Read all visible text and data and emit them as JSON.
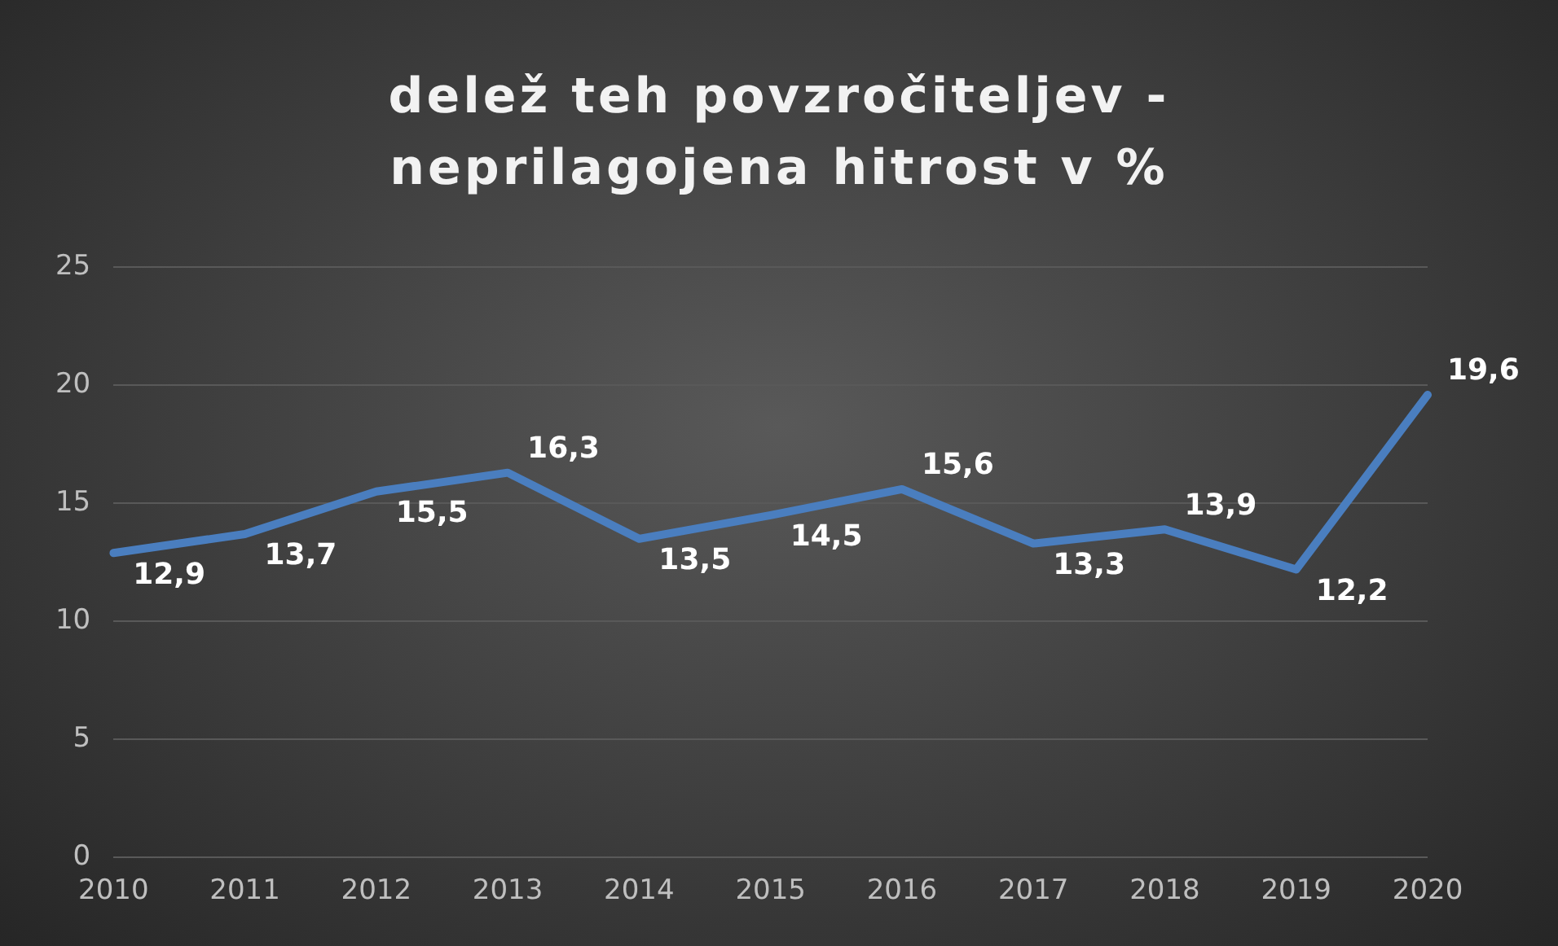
{
  "chart_data": {
    "type": "line",
    "title": "delež teh povzročiteljev - neprilagojena hitrost v %",
    "categories": [
      "2010",
      "2011",
      "2012",
      "2013",
      "2014",
      "2015",
      "2016",
      "2017",
      "2018",
      "2019",
      "2020"
    ],
    "series": [
      {
        "color": "#4a7ebf",
        "values": [
          12.9,
          13.7,
          15.5,
          16.3,
          13.5,
          14.5,
          15.6,
          13.3,
          13.9,
          12.2,
          19.6
        ],
        "value_labels": [
          "12,9",
          "13,7",
          "15,5",
          "16,3",
          "13,5",
          "14,5",
          "15,6",
          "13,3",
          "13,9",
          "12,2",
          "19,6"
        ]
      }
    ],
    "ylim": [
      0,
      25
    ],
    "yticks": [
      0,
      5,
      10,
      15,
      20,
      25
    ],
    "grid": "y",
    "legend": false,
    "marker": "none",
    "line_style": "solid"
  }
}
